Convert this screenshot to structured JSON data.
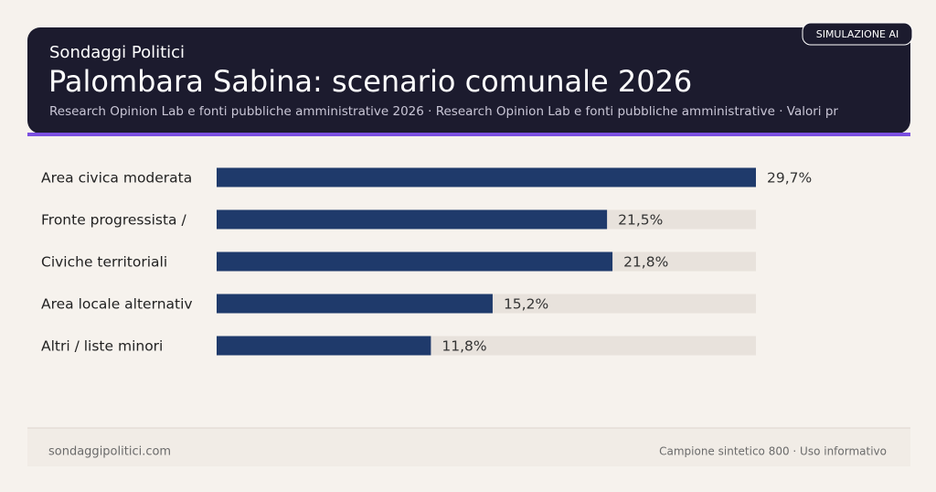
{
  "header": {
    "kicker": "Sondaggi Politici",
    "title": "Palombara Sabina: scenario comunale 2026",
    "subtitle": "Research Opinion Lab e fonti pubbliche amministrative 2026 · Research Opinion Lab e fonti pubbliche amministrative · Valori pr",
    "badge": "SIMULAZIONE AI"
  },
  "chart_data": {
    "type": "bar",
    "orientation": "horizontal",
    "categories": [
      "Area civica moderata",
      "Fronte progressista /",
      "Civiche territoriali",
      "Area locale alternativ",
      "Altri / liste minori"
    ],
    "values": [
      29.7,
      21.5,
      21.8,
      15.2,
      11.8
    ],
    "value_labels": [
      "29,7%",
      "21,5%",
      "21,8%",
      "15,2%",
      "11,8%"
    ],
    "color": "#1f3a6b",
    "track_color": "#e8e2dc"
  },
  "footer": {
    "left": "sondaggipolitici.com",
    "right": "Campione sintetico 800 · Uso informativo"
  }
}
